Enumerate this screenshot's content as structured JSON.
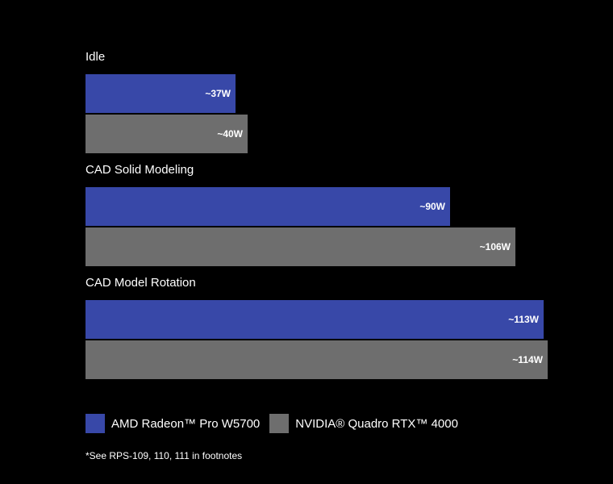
{
  "chart_data": {
    "type": "bar",
    "orientation": "horizontal",
    "categories": [
      "Idle",
      "CAD Solid Modeling",
      "CAD Model Rotation"
    ],
    "series": [
      {
        "name": "AMD Radeon™ Pro W5700",
        "color": "#3848a8",
        "values": [
          37,
          90,
          113
        ],
        "labels": [
          "~37W",
          "~90W",
          "~113W"
        ]
      },
      {
        "name": "NVIDIA® Quadro RTX™ 4000",
        "color": "#6e6e6e",
        "values": [
          40,
          106,
          114
        ],
        "labels": [
          "~40W",
          "~106W",
          "~114W"
        ]
      }
    ],
    "unit": "W",
    "xlim": [
      0,
      114
    ],
    "grid": false,
    "legend_position": "bottom-left",
    "footnote": "*See RPS-109, 110, 111 in footnotes"
  }
}
